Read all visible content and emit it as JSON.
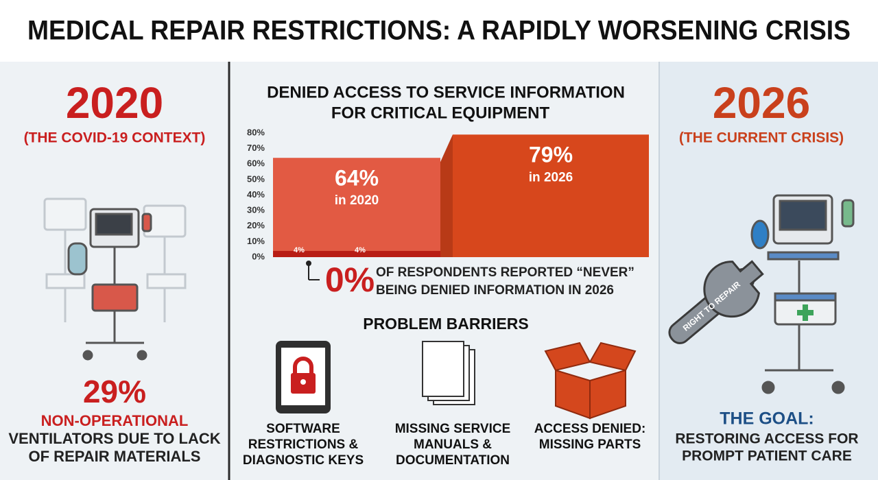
{
  "title": "MEDICAL REPAIR RESTRICTIONS: A RAPIDLY WORSENING CRISIS",
  "left": {
    "year": "2020",
    "subtitle": "(THE COVID-19 CONTEXT)",
    "stat": "29%",
    "stat_label": "NON-OPERATIONAL",
    "description": [
      "VENTILATORS DUE TO LACK",
      "OF REPAIR MATERIALS"
    ]
  },
  "right": {
    "year": "2026",
    "subtitle": "(THE CURRENT CRISIS)",
    "wrench_label": "RIGHT TO REPAIR",
    "goal": "THE GOAL:",
    "description": [
      "RESTORING ACCESS FOR",
      "PROMPT PATIENT CARE"
    ]
  },
  "chart_data": {
    "type": "bar",
    "title": [
      "DENIED ACCESS TO SERVICE INFORMATION",
      "FOR CRITICAL EQUIPMENT"
    ],
    "categories": [
      "in 2020",
      "in 2026"
    ],
    "values": [
      64,
      79
    ],
    "value_labels": [
      "64%",
      "79%"
    ],
    "colors": [
      "#e25a43",
      "#d7471c"
    ],
    "base_strip": {
      "values": [
        4,
        4
      ],
      "value_labels": [
        "4%",
        "4%"
      ],
      "color": "#b81d14"
    },
    "ylim": [
      0,
      80
    ],
    "yticks": [
      {
        "value": 0,
        "label": "0%"
      },
      {
        "value": 10,
        "label": "10%"
      },
      {
        "value": 20,
        "label": "20%"
      },
      {
        "value": 30,
        "label": "30%"
      },
      {
        "value": 40,
        "label": "40%"
      },
      {
        "value": 50,
        "label": "50%"
      },
      {
        "value": 60,
        "label": "60%"
      },
      {
        "value": 70,
        "label": "70%"
      },
      {
        "value": 80,
        "label": "80%"
      }
    ]
  },
  "callout": {
    "value": "0%",
    "text": [
      "OF RESPONDENTS REPORTED “NEVER”",
      "BEING DENIED INFORMATION IN 2026"
    ]
  },
  "barriers": {
    "title": "PROBLEM BARRIERS",
    "items": [
      {
        "label": [
          "SOFTWARE",
          "RESTRICTIONS &",
          "DIAGNOSTIC KEYS"
        ]
      },
      {
        "label": [
          "MISSING SERVICE",
          "MANUALS &",
          "DOCUMENTATION"
        ]
      },
      {
        "label": [
          "ACCESS DENIED:",
          "MISSING PARTS"
        ]
      }
    ]
  }
}
